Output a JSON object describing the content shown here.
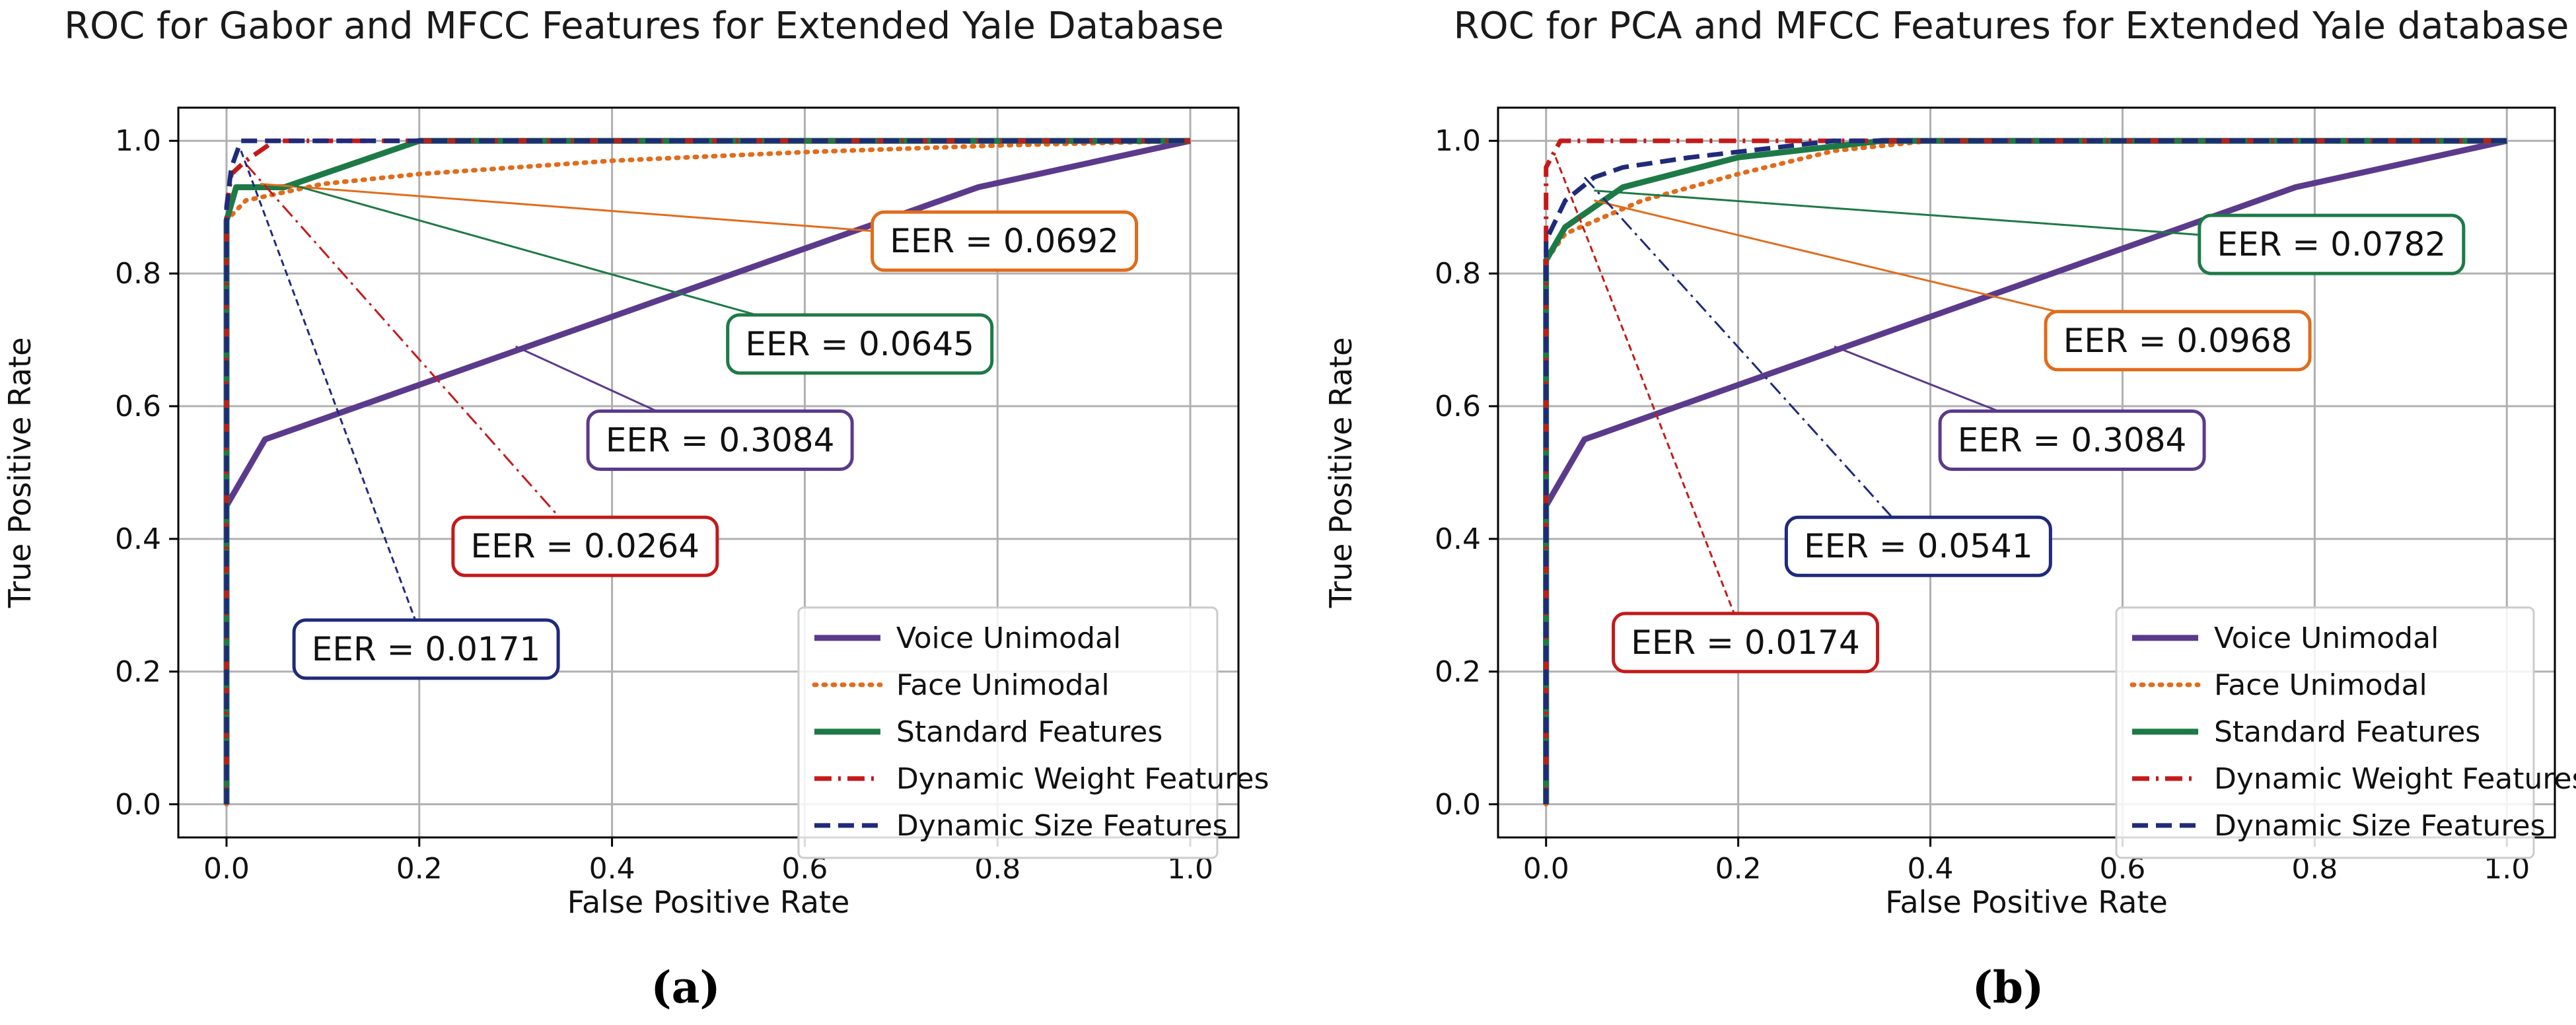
{
  "chart_data": [
    {
      "type": "line",
      "title": "ROC for Gabor and MFCC Features for Extended Yale Database",
      "xlabel": "False Positive Rate",
      "ylabel": "True Positive Rate",
      "caption": "(a)",
      "xlim": [
        -0.05,
        1.05
      ],
      "ylim": [
        -0.05,
        1.05
      ],
      "xticks": [
        0.0,
        0.2,
        0.4,
        0.6,
        0.8,
        1.0
      ],
      "yticks": [
        0.0,
        0.2,
        0.4,
        0.6,
        0.8,
        1.0
      ],
      "xtick_labels": [
        "0.0",
        "0.2",
        "0.4",
        "0.6",
        "0.8",
        "1.0"
      ],
      "ytick_labels": [
        "0.0",
        "0.2",
        "0.4",
        "0.6",
        "0.8",
        "1.0"
      ],
      "grid": true,
      "legend_position": "lower-right",
      "series": [
        {
          "name": "Voice Unimodal",
          "style": "solid",
          "color": "#5b3a8c",
          "points": [
            [
              0.0,
              0.0
            ],
            [
              0.0,
              0.45
            ],
            [
              0.04,
              0.55
            ],
            [
              0.78,
              0.93
            ],
            [
              1.0,
              1.0
            ]
          ]
        },
        {
          "name": "Face Unimodal",
          "style": "dotted",
          "color": "#e06c1c",
          "points": [
            [
              0.0,
              0.0
            ],
            [
              0.0,
              0.88
            ],
            [
              0.02,
              0.91
            ],
            [
              0.1,
              0.935
            ],
            [
              0.2,
              0.95
            ],
            [
              0.4,
              0.97
            ],
            [
              0.6,
              0.983
            ],
            [
              0.8,
              0.993
            ],
            [
              1.0,
              1.0
            ]
          ]
        },
        {
          "name": "Standard Features",
          "style": "solid",
          "color": "#1d7a47",
          "points": [
            [
              0.0,
              0.0
            ],
            [
              0.0,
              0.88
            ],
            [
              0.01,
              0.93
            ],
            [
              0.06,
              0.93
            ],
            [
              0.2,
              1.0
            ],
            [
              1.0,
              1.0
            ]
          ]
        },
        {
          "name": "Dynamic Weight Features",
          "style": "dashdot",
          "color": "#c41a1a",
          "points": [
            [
              0.0,
              0.0
            ],
            [
              0.0,
              0.9
            ],
            [
              0.005,
              0.95
            ],
            [
              0.02,
              0.97
            ],
            [
              0.05,
              1.0
            ],
            [
              1.0,
              1.0
            ]
          ]
        },
        {
          "name": "Dynamic Size Features",
          "style": "dashed",
          "color": "#1f2a7a",
          "points": [
            [
              0.0,
              0.0
            ],
            [
              0.0,
              0.9
            ],
            [
              0.005,
              0.96
            ],
            [
              0.015,
              1.0
            ],
            [
              1.0,
              1.0
            ]
          ]
        }
      ],
      "annotations": [
        {
          "text": "EER = 0.0692",
          "color": "#e06c1c",
          "box_at": [
            0.67,
            0.805
          ],
          "point_to": [
            0.035,
            0.935
          ]
        },
        {
          "text": "EER = 0.0645",
          "color": "#1d7a47",
          "box_at": [
            0.52,
            0.65
          ],
          "point_to": [
            0.065,
            0.935
          ]
        },
        {
          "text": "EER = 0.3084",
          "color": "#5b3a8c",
          "box_at": [
            0.375,
            0.505
          ],
          "point_to": [
            0.3,
            0.69
          ]
        },
        {
          "text": "EER = 0.0264",
          "color": "#c41a1a",
          "box_at": [
            0.235,
            0.345
          ],
          "point_to": [
            0.02,
            0.965
          ]
        },
        {
          "text": "EER = 0.0171",
          "color": "#1f2a7a",
          "box_at": [
            0.07,
            0.19
          ],
          "point_to": [
            0.015,
            0.985
          ]
        }
      ]
    },
    {
      "type": "line",
      "title": "ROC for PCA and MFCC Features for Extended Yale database",
      "xlabel": "False Positive Rate",
      "ylabel": "True Positive Rate",
      "caption": "(b)",
      "xlim": [
        -0.05,
        1.05
      ],
      "ylim": [
        -0.05,
        1.05
      ],
      "xticks": [
        0.0,
        0.2,
        0.4,
        0.6,
        0.8,
        1.0
      ],
      "yticks": [
        0.0,
        0.2,
        0.4,
        0.6,
        0.8,
        1.0
      ],
      "xtick_labels": [
        "0.0",
        "0.2",
        "0.4",
        "0.6",
        "0.8",
        "1.0"
      ],
      "ytick_labels": [
        "0.0",
        "0.2",
        "0.4",
        "0.6",
        "0.8",
        "1.0"
      ],
      "grid": true,
      "legend_position": "lower-right",
      "series": [
        {
          "name": "Voice Unimodal",
          "style": "solid",
          "color": "#5b3a8c",
          "points": [
            [
              0.0,
              0.0
            ],
            [
              0.0,
              0.45
            ],
            [
              0.04,
              0.55
            ],
            [
              0.78,
              0.93
            ],
            [
              1.0,
              1.0
            ]
          ]
        },
        {
          "name": "Face Unimodal",
          "style": "dotted",
          "color": "#e06c1c",
          "points": [
            [
              0.0,
              0.0
            ],
            [
              0.0,
              0.82
            ],
            [
              0.02,
              0.86
            ],
            [
              0.1,
              0.91
            ],
            [
              0.2,
              0.95
            ],
            [
              0.3,
              0.985
            ],
            [
              0.4,
              1.0
            ],
            [
              1.0,
              1.0
            ]
          ]
        },
        {
          "name": "Standard Features",
          "style": "solid",
          "color": "#1d7a47",
          "points": [
            [
              0.0,
              0.0
            ],
            [
              0.0,
              0.82
            ],
            [
              0.02,
              0.87
            ],
            [
              0.08,
              0.93
            ],
            [
              0.2,
              0.975
            ],
            [
              0.35,
              1.0
            ],
            [
              1.0,
              1.0
            ]
          ]
        },
        {
          "name": "Dynamic Weight Features",
          "style": "dashdot",
          "color": "#c41a1a",
          "points": [
            [
              0.0,
              0.0
            ],
            [
              0.0,
              0.96
            ],
            [
              0.015,
              1.0
            ],
            [
              1.0,
              1.0
            ]
          ]
        },
        {
          "name": "Dynamic Size Features",
          "style": "dashed",
          "color": "#1f2a7a",
          "points": [
            [
              0.0,
              0.0
            ],
            [
              0.0,
              0.85
            ],
            [
              0.02,
              0.91
            ],
            [
              0.05,
              0.945
            ],
            [
              0.08,
              0.96
            ],
            [
              0.15,
              0.975
            ],
            [
              0.3,
              1.0
            ],
            [
              1.0,
              1.0
            ]
          ]
        }
      ],
      "annotations": [
        {
          "text": "EER = 0.0782",
          "color": "#1d7a47",
          "box_at": [
            0.68,
            0.8
          ],
          "point_to": [
            0.05,
            0.925
          ]
        },
        {
          "text": "EER = 0.0968",
          "color": "#e06c1c",
          "box_at": [
            0.52,
            0.655
          ],
          "point_to": [
            0.05,
            0.91
          ]
        },
        {
          "text": "EER = 0.3084",
          "color": "#5b3a8c",
          "box_at": [
            0.41,
            0.505
          ],
          "point_to": [
            0.3,
            0.69
          ]
        },
        {
          "text": "EER = 0.0541",
          "color": "#1f2a7a",
          "box_at": [
            0.25,
            0.345
          ],
          "point_to": [
            0.04,
            0.945
          ]
        },
        {
          "text": "EER = 0.0174",
          "color": "#c41a1a",
          "box_at": [
            0.07,
            0.2
          ],
          "point_to": [
            0.01,
            0.975
          ]
        }
      ]
    }
  ]
}
